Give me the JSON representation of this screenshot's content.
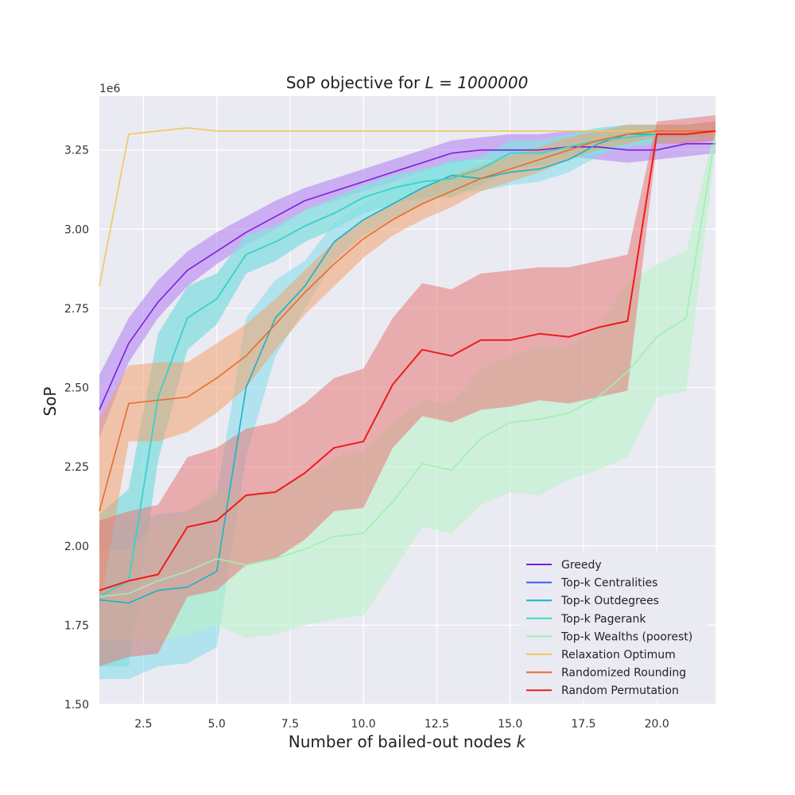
{
  "chart_data": {
    "type": "line",
    "title_prefix": "SoP objective for ",
    "title_math": "L = 1000000",
    "xlabel_prefix": "Number of bailed-out nodes ",
    "xlabel_math": "k",
    "ylabel": "SoP",
    "y_scale_label": "1e6",
    "xlim": [
      1,
      22
    ],
    "ylim": [
      1.5,
      3.42
    ],
    "x_ticks": [
      2.5,
      5.0,
      7.5,
      10.0,
      12.5,
      15.0,
      17.5,
      20.0
    ],
    "x_tick_labels": [
      "2.5",
      "5.0",
      "7.5",
      "10.0",
      "12.5",
      "15.0",
      "17.5",
      "20.0"
    ],
    "y_ticks": [
      1.5,
      1.75,
      2.0,
      2.25,
      2.5,
      2.75,
      3.0,
      3.25
    ],
    "y_tick_labels": [
      "1.50",
      "1.75",
      "2.00",
      "2.25",
      "2.50",
      "2.75",
      "3.00",
      "3.25"
    ],
    "grid": true,
    "legend_position": "lower-right",
    "x": [
      1,
      2,
      3,
      4,
      5,
      6,
      7,
      8,
      9,
      10,
      11,
      12,
      13,
      14,
      15,
      16,
      17,
      18,
      19,
      20,
      21,
      22
    ],
    "series": [
      {
        "name": "Greedy",
        "color": "#7b1fe0",
        "band_color": "#b07cf0",
        "values": [
          2.43,
          2.64,
          2.77,
          2.87,
          2.93,
          2.99,
          3.04,
          3.09,
          3.12,
          3.15,
          3.18,
          3.21,
          3.24,
          3.25,
          3.25,
          3.25,
          3.26,
          3.26,
          3.25,
          3.25,
          3.27,
          3.27
        ],
        "lower": [
          2.34,
          2.58,
          2.72,
          2.82,
          2.89,
          2.95,
          3.0,
          3.06,
          3.09,
          3.12,
          3.15,
          3.18,
          3.21,
          3.22,
          3.22,
          3.23,
          3.23,
          3.22,
          3.21,
          3.22,
          3.23,
          3.24
        ],
        "upper": [
          2.54,
          2.72,
          2.84,
          2.93,
          2.99,
          3.04,
          3.09,
          3.13,
          3.16,
          3.19,
          3.22,
          3.25,
          3.28,
          3.29,
          3.3,
          3.3,
          3.31,
          3.31,
          3.31,
          3.3,
          3.31,
          3.31
        ]
      },
      {
        "name": "Top-k Centralities",
        "color": "#3a5ee8",
        "band_color": "#8fc6f0",
        "values": [
          1.84,
          1.89,
          2.47,
          2.72,
          2.78,
          2.92,
          2.96,
          3.01,
          3.05,
          3.1,
          3.13,
          3.15,
          3.16,
          3.19,
          3.24,
          3.24,
          3.26,
          3.28,
          3.29,
          3.3,
          3.3,
          3.31
        ],
        "lower": [
          1.62,
          1.62,
          2.27,
          2.62,
          2.7,
          2.86,
          2.9,
          2.96,
          3.0,
          3.05,
          3.08,
          3.1,
          3.1,
          3.14,
          3.19,
          3.2,
          3.22,
          3.24,
          3.26,
          3.27,
          3.28,
          3.29
        ],
        "upper": [
          2.1,
          2.18,
          2.67,
          2.82,
          2.86,
          2.98,
          3.01,
          3.06,
          3.1,
          3.14,
          3.17,
          3.19,
          3.21,
          3.23,
          3.28,
          3.28,
          3.3,
          3.32,
          3.33,
          3.33,
          3.33,
          3.34
        ]
      },
      {
        "name": "Top-k Outdegrees",
        "color": "#16b4c8",
        "band_color": "#80dcea",
        "values": [
          1.83,
          1.82,
          1.86,
          1.87,
          1.92,
          2.5,
          2.72,
          2.82,
          2.96,
          3.03,
          3.08,
          3.13,
          3.17,
          3.16,
          3.18,
          3.19,
          3.22,
          3.27,
          3.3,
          3.3,
          3.3,
          3.31
        ],
        "lower": [
          1.58,
          1.58,
          1.62,
          1.63,
          1.68,
          2.28,
          2.6,
          2.75,
          2.9,
          2.98,
          3.03,
          3.08,
          3.12,
          3.12,
          3.14,
          3.15,
          3.18,
          3.23,
          3.27,
          3.28,
          3.28,
          3.29
        ],
        "upper": [
          2.07,
          2.06,
          2.1,
          2.11,
          2.16,
          2.72,
          2.84,
          2.9,
          3.02,
          3.08,
          3.13,
          3.18,
          3.22,
          3.21,
          3.23,
          3.24,
          3.26,
          3.31,
          3.33,
          3.33,
          3.33,
          3.34
        ]
      },
      {
        "name": "Top-k Pagerank",
        "color": "#36ddc0",
        "band_color": "#86e9da",
        "values": [
          1.84,
          1.89,
          2.47,
          2.72,
          2.78,
          2.92,
          2.96,
          3.01,
          3.05,
          3.1,
          3.13,
          3.15,
          3.16,
          3.19,
          3.24,
          3.24,
          3.26,
          3.28,
          3.29,
          3.3,
          3.3,
          3.31
        ],
        "lower": [
          1.62,
          1.62,
          2.27,
          2.62,
          2.7,
          2.86,
          2.9,
          2.96,
          3.0,
          3.05,
          3.08,
          3.1,
          3.1,
          3.14,
          3.19,
          3.2,
          3.22,
          3.24,
          3.26,
          3.27,
          3.28,
          3.29
        ],
        "upper": [
          2.1,
          2.18,
          2.67,
          2.82,
          2.86,
          2.98,
          3.01,
          3.06,
          3.1,
          3.14,
          3.17,
          3.19,
          3.21,
          3.23,
          3.28,
          3.28,
          3.3,
          3.32,
          3.33,
          3.33,
          3.33,
          3.34
        ]
      },
      {
        "name": "Top-k Wealths (poorest)",
        "color": "#9ef0b2",
        "band_color": "#b6f2c4",
        "values": [
          1.84,
          1.85,
          1.89,
          1.92,
          1.96,
          1.94,
          1.96,
          1.99,
          2.03,
          2.04,
          2.14,
          2.26,
          2.24,
          2.34,
          2.39,
          2.4,
          2.42,
          2.47,
          2.55,
          2.66,
          2.72,
          3.3
        ],
        "lower": [
          1.7,
          1.7,
          1.7,
          1.72,
          1.75,
          1.71,
          1.72,
          1.75,
          1.77,
          1.78,
          1.92,
          2.06,
          2.04,
          2.13,
          2.17,
          2.16,
          2.21,
          2.24,
          2.28,
          2.47,
          2.49,
          3.26
        ],
        "upper": [
          1.99,
          1.99,
          2.07,
          2.11,
          2.18,
          2.16,
          2.18,
          2.22,
          2.28,
          2.3,
          2.39,
          2.46,
          2.45,
          2.56,
          2.6,
          2.63,
          2.63,
          2.69,
          2.83,
          2.89,
          2.93,
          3.33
        ]
      },
      {
        "name": "Relaxation Optimum",
        "color": "#f0c85e",
        "band_color": "#f6dc9a",
        "values": [
          2.82,
          3.3,
          3.31,
          3.32,
          3.31,
          3.31,
          3.31,
          3.31,
          3.31,
          3.31,
          3.31,
          3.31,
          3.31,
          3.31,
          3.31,
          3.31,
          3.31,
          3.31,
          3.31,
          3.31,
          3.31,
          3.31
        ],
        "lower": [
          2.82,
          3.3,
          3.31,
          3.32,
          3.31,
          3.31,
          3.31,
          3.31,
          3.31,
          3.31,
          3.31,
          3.31,
          3.31,
          3.31,
          3.31,
          3.31,
          3.31,
          3.31,
          3.31,
          3.31,
          3.31,
          3.31
        ],
        "upper": [
          2.82,
          3.3,
          3.31,
          3.32,
          3.31,
          3.31,
          3.31,
          3.31,
          3.31,
          3.31,
          3.31,
          3.31,
          3.31,
          3.31,
          3.31,
          3.31,
          3.31,
          3.31,
          3.31,
          3.31,
          3.31,
          3.31
        ]
      },
      {
        "name": "Randomized Rounding",
        "color": "#ec6a2c",
        "band_color": "#f2a36e",
        "values": [
          2.11,
          2.45,
          2.46,
          2.47,
          2.53,
          2.6,
          2.7,
          2.8,
          2.89,
          2.97,
          3.03,
          3.08,
          3.12,
          3.16,
          3.19,
          3.22,
          3.25,
          3.28,
          3.3,
          3.31,
          3.31,
          3.31
        ],
        "lower": [
          1.8,
          2.33,
          2.33,
          2.36,
          2.42,
          2.5,
          2.62,
          2.73,
          2.82,
          2.91,
          2.98,
          3.03,
          3.07,
          3.12,
          3.15,
          3.18,
          3.22,
          3.25,
          3.27,
          3.29,
          3.29,
          3.29
        ],
        "upper": [
          2.4,
          2.57,
          2.58,
          2.58,
          2.64,
          2.7,
          2.78,
          2.87,
          2.96,
          3.03,
          3.08,
          3.13,
          3.17,
          3.2,
          3.23,
          3.26,
          3.29,
          3.31,
          3.33,
          3.33,
          3.33,
          3.34
        ]
      },
      {
        "name": "Random Permutation",
        "color": "#ef1b1b",
        "band_color": "#e67878",
        "values": [
          1.86,
          1.89,
          1.91,
          2.06,
          2.08,
          2.16,
          2.17,
          2.23,
          2.31,
          2.33,
          2.51,
          2.62,
          2.6,
          2.65,
          2.65,
          2.67,
          2.66,
          2.69,
          2.71,
          3.3,
          3.3,
          3.31
        ],
        "lower": [
          1.62,
          1.65,
          1.66,
          1.84,
          1.86,
          1.94,
          1.96,
          2.02,
          2.11,
          2.12,
          2.31,
          2.41,
          2.39,
          2.43,
          2.44,
          2.46,
          2.45,
          2.47,
          2.49,
          3.27,
          3.27,
          3.28
        ],
        "upper": [
          2.08,
          2.11,
          2.13,
          2.28,
          2.31,
          2.37,
          2.39,
          2.45,
          2.53,
          2.56,
          2.72,
          2.83,
          2.81,
          2.86,
          2.87,
          2.88,
          2.88,
          2.9,
          2.92,
          3.34,
          3.35,
          3.36
        ]
      }
    ]
  }
}
